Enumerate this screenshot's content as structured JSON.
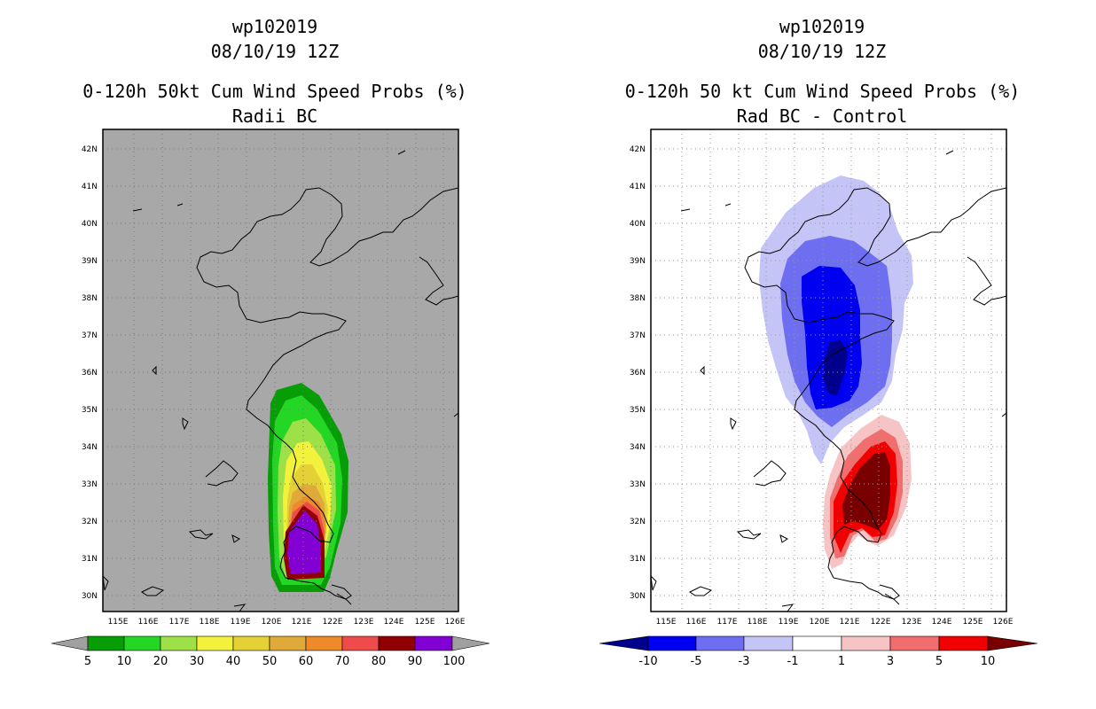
{
  "left_panel": {
    "storm_id": "wp102019",
    "datetime": "08/10/19 12Z",
    "title": "0-120h 50kt Cum Wind Speed Probs (%)",
    "subtitle": "Radii BC",
    "lat_labels": [
      "42N",
      "41N",
      "40N",
      "39N",
      "38N",
      "37N",
      "36N",
      "35N",
      "34N",
      "33N",
      "32N",
      "31N",
      "30N"
    ],
    "lon_labels": [
      "115E",
      "116E",
      "117E",
      "118E",
      "119E",
      "120E",
      "121E",
      "122E",
      "123E",
      "124E",
      "125E",
      "126E"
    ],
    "colorbar": {
      "labels": [
        "5",
        "10",
        "20",
        "30",
        "40",
        "50",
        "60",
        "70",
        "80",
        "90",
        "100"
      ],
      "colors": [
        "#a0a0a0",
        "#079d07",
        "#25d725",
        "#9de048",
        "#f2f23c",
        "#e4d135",
        "#e0aa3a",
        "#ee8a2a",
        "#f04b4b",
        "#900000",
        "#8300d4",
        "#a0a0a0"
      ]
    }
  },
  "right_panel": {
    "storm_id": "wp102019",
    "datetime": "08/10/19 12Z",
    "title": "0-120h 50 kt Cum Wind Speed Probs (%)",
    "subtitle": "Rad BC - Control",
    "lat_labels": [
      "42N",
      "41N",
      "40N",
      "39N",
      "38N",
      "37N",
      "36N",
      "35N",
      "34N",
      "33N",
      "32N",
      "31N",
      "30N"
    ],
    "lon_labels": [
      "115E",
      "116E",
      "117E",
      "118E",
      "119E",
      "120E",
      "121E",
      "122E",
      "123E",
      "124E",
      "125E",
      "126E"
    ],
    "colorbar": {
      "labels": [
        "-10",
        "-5",
        "-3",
        "-1",
        "1",
        "3",
        "5",
        "10"
      ],
      "colors": [
        "#00008c",
        "#0000f0",
        "#6e6ef0",
        "#c4c4f6",
        "#ffffff",
        "#f6c4c4",
        "#f06e6e",
        "#f00000",
        "#780000"
      ]
    }
  }
}
